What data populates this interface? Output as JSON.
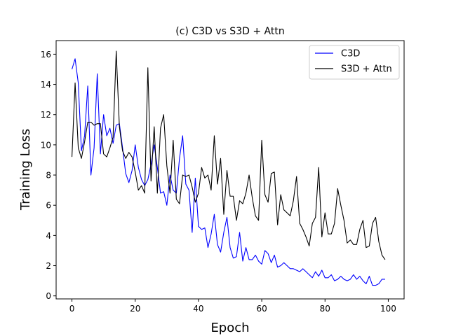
{
  "chart_data": {
    "type": "line",
    "title": "(c) C3D vs S3D + Attn",
    "xlabel": "Epoch",
    "ylabel": "Training Loss",
    "xlim": [
      -5,
      105
    ],
    "ylim": [
      -0.2,
      16.9
    ],
    "xticks": [
      0,
      20,
      40,
      60,
      80,
      100
    ],
    "yticks": [
      0,
      2,
      4,
      6,
      8,
      10,
      12,
      14,
      16
    ],
    "legend_position": "top-right",
    "grid": false,
    "series": [
      {
        "name": "C3D",
        "color": "#0000ff",
        "values": [
          15.0,
          15.7,
          14.1,
          9.6,
          10.6,
          13.9,
          8.0,
          9.8,
          14.7,
          9.4,
          12.0,
          10.6,
          11.1,
          10.1,
          11.3,
          11.4,
          9.8,
          8.1,
          7.5,
          8.3,
          10.0,
          8.5,
          7.7,
          7.3,
          7.7,
          8.7,
          10.0,
          8.5,
          6.8,
          6.9,
          6.0,
          8.0,
          7.0,
          6.8,
          9.1,
          10.6,
          7.4,
          7.0,
          4.2,
          7.8,
          4.6,
          4.4,
          4.5,
          3.2,
          4.1,
          5.4,
          3.4,
          2.9,
          4.2,
          5.2,
          3.2,
          2.5,
          2.6,
          4.2,
          2.3,
          3.2,
          2.4,
          2.4,
          2.7,
          2.3,
          2.1,
          3.0,
          2.8,
          2.2,
          2.7,
          1.9,
          2.0,
          2.2,
          2.0,
          1.8,
          1.8,
          1.7,
          1.6,
          1.8,
          1.6,
          1.4,
          1.2,
          1.6,
          1.3,
          1.7,
          1.2,
          1.2,
          1.4,
          1.0,
          1.1,
          1.3,
          1.1,
          1.0,
          1.1,
          1.4,
          1.1,
          1.3,
          1.0,
          0.8,
          1.3,
          0.7,
          0.7,
          0.8,
          1.1,
          1.1
        ]
      },
      {
        "name": "S3D + Attn",
        "color": "#000000",
        "values": [
          9.2,
          14.1,
          9.8,
          9.1,
          10.2,
          11.5,
          11.5,
          11.3,
          11.4,
          11.4,
          9.4,
          9.2,
          9.8,
          10.5,
          16.2,
          11.2,
          9.6,
          9.1,
          9.5,
          9.2,
          8.2,
          7.0,
          7.3,
          6.8,
          15.1,
          7.6,
          11.2,
          6.8,
          11.1,
          12.0,
          8.6,
          6.8,
          10.3,
          6.4,
          6.1,
          8.0,
          7.9,
          8.0,
          7.2,
          6.2,
          6.8,
          8.5,
          7.8,
          8.0,
          7.0,
          10.6,
          7.4,
          9.1,
          5.4,
          8.3,
          6.6,
          6.6,
          5.0,
          6.3,
          6.1,
          6.8,
          8.0,
          6.5,
          5.3,
          5.0,
          10.3,
          6.7,
          6.2,
          8.1,
          8.2,
          4.7,
          6.7,
          5.7,
          5.5,
          5.3,
          6.3,
          7.9,
          4.8,
          4.4,
          3.9,
          3.3,
          4.8,
          5.2,
          8.5,
          3.9,
          5.5,
          4.1,
          4.1,
          4.8,
          7.1,
          6.0,
          5.0,
          3.5,
          3.7,
          3.4,
          3.4,
          4.4,
          5.0,
          3.2,
          3.3,
          4.8,
          5.2,
          3.6,
          2.7,
          2.4
        ]
      }
    ]
  }
}
